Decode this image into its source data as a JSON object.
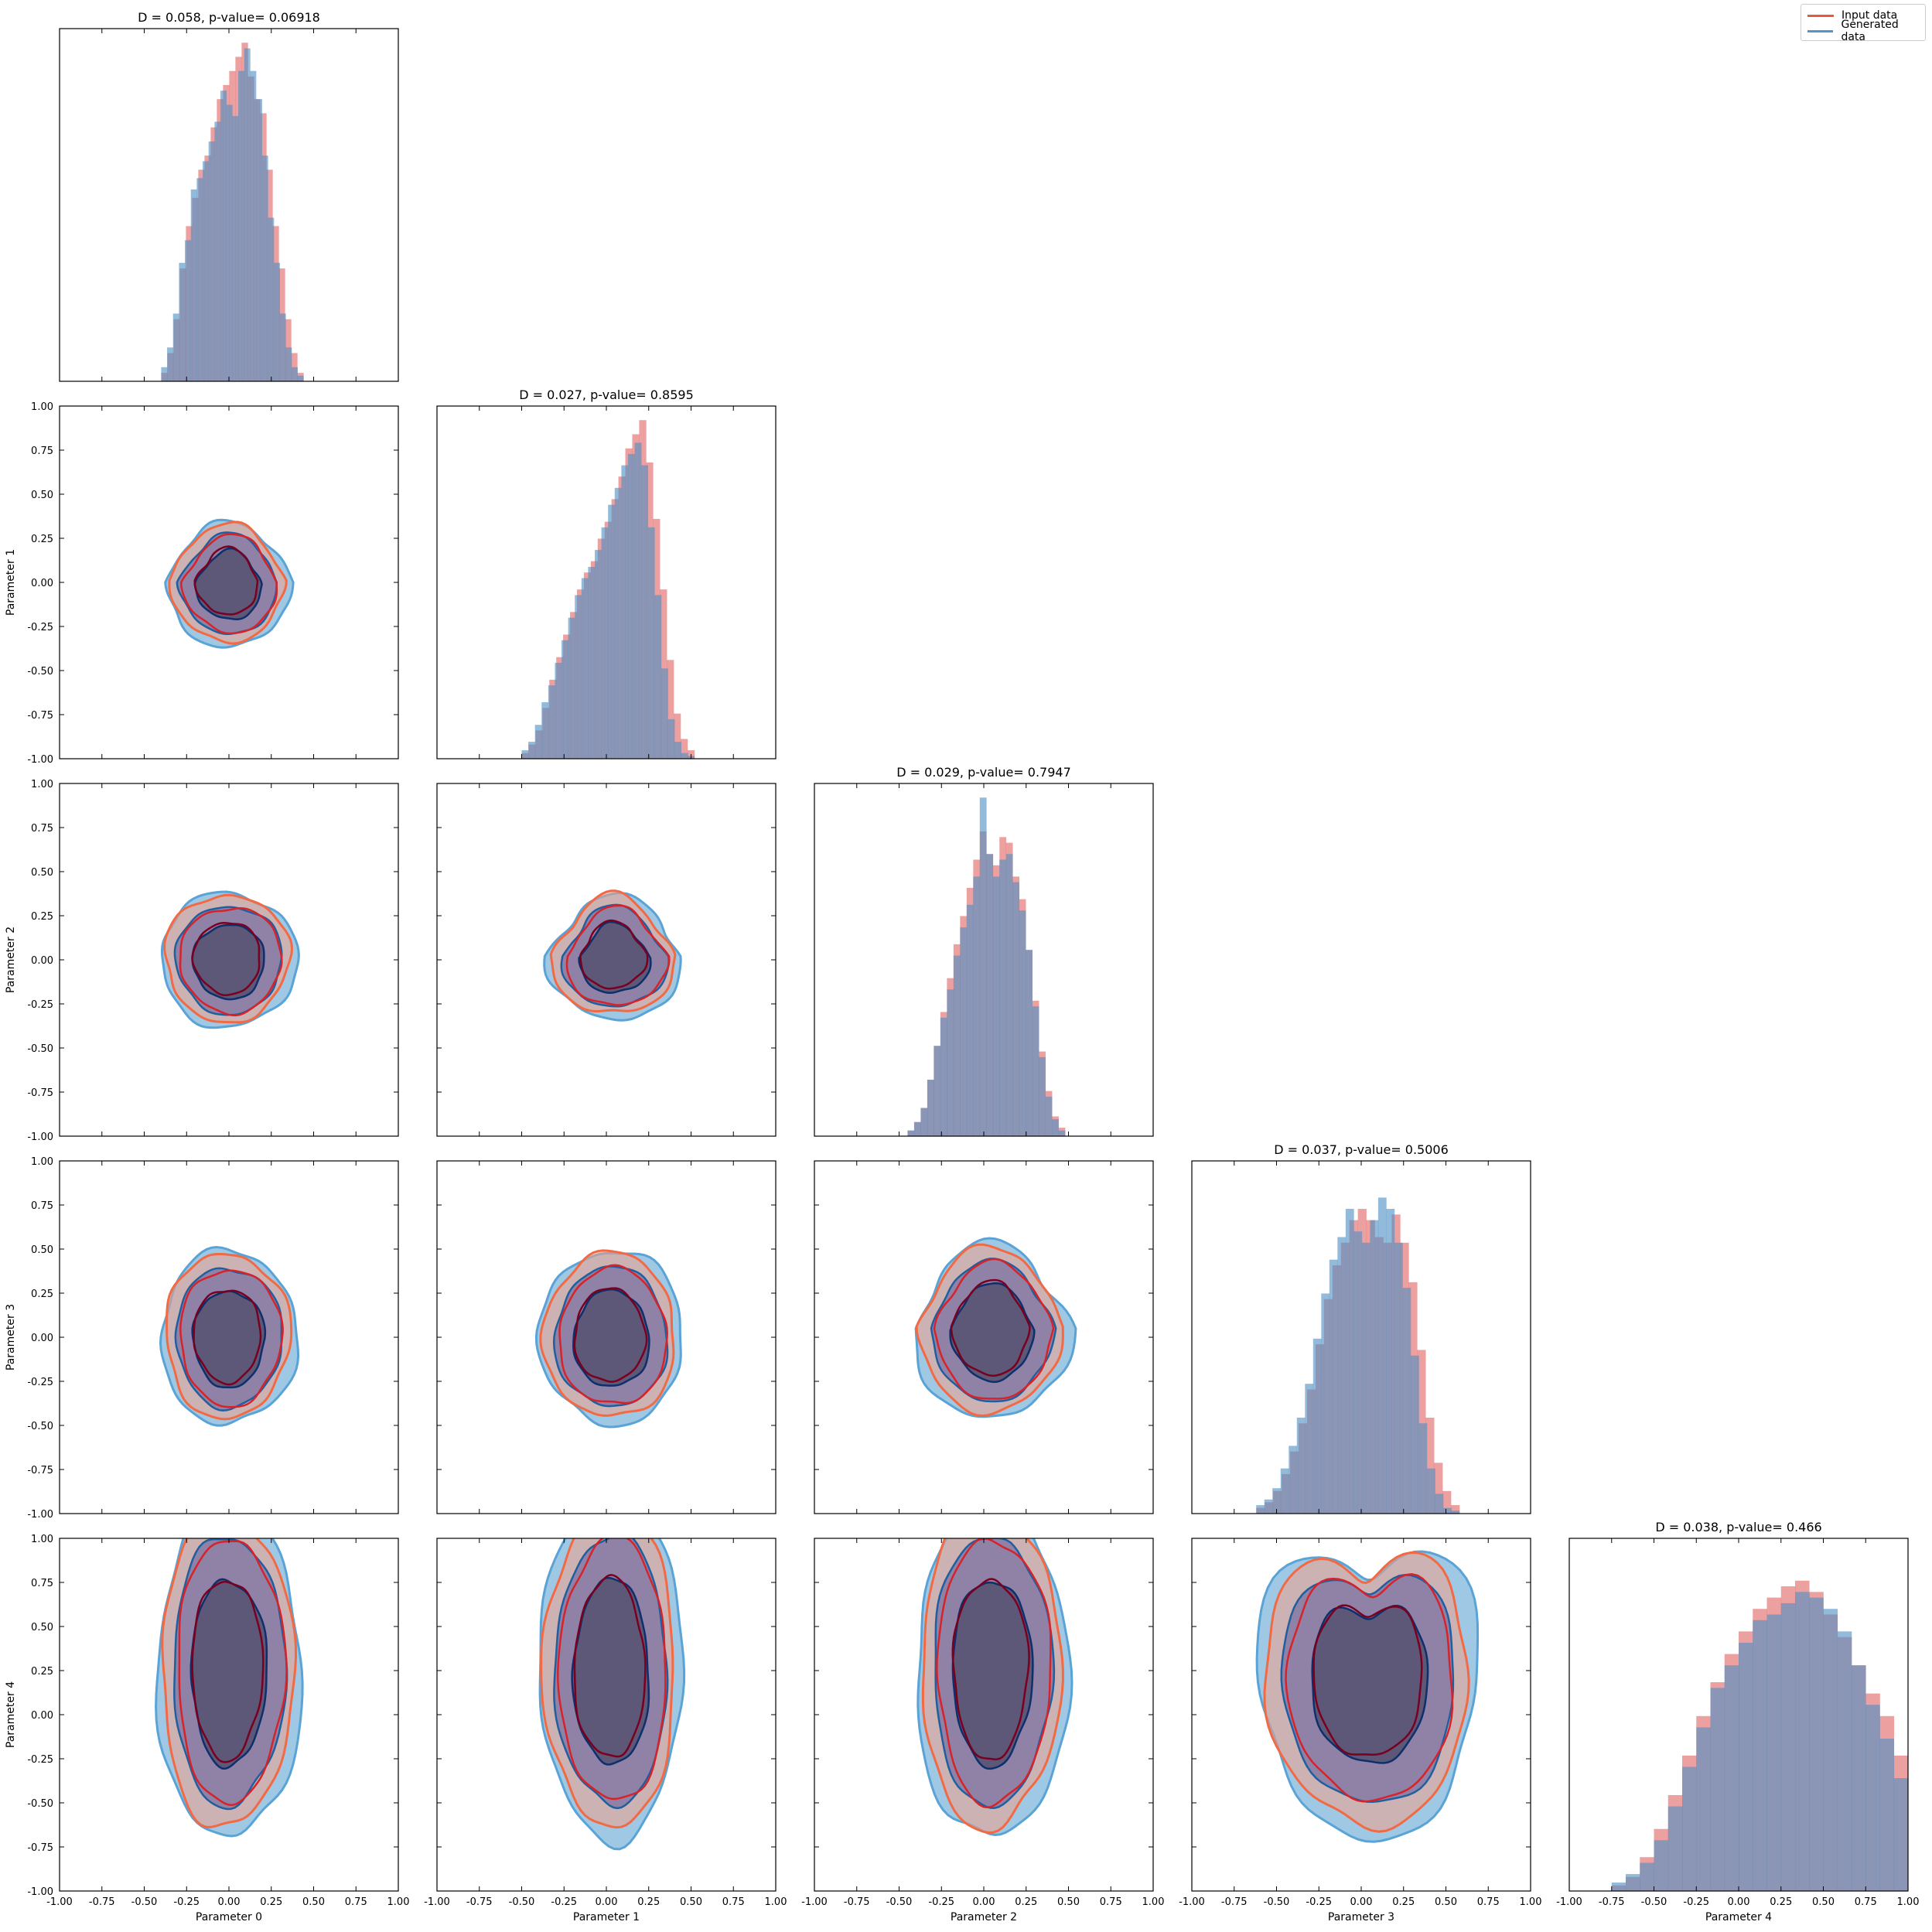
{
  "figure": {
    "legend": [
      {
        "label": "Input data",
        "color": "#e8583c"
      },
      {
        "label": "Generated data",
        "color": "#4f98cf"
      }
    ]
  },
  "colors": {
    "input_hist": "#e06666",
    "generated_hist": "#4f8fc4",
    "input_line_inner": "#7a0020",
    "input_line_mid": "#d6232a",
    "input_line_outer": "#f26a43",
    "gen_line_inner": "#0d2f6b",
    "gen_line_mid": "#1f5fa0",
    "gen_line_outer": "#5aa3d6",
    "fill_outer_input": "#f3a08a",
    "fill_outer_gen": "#7fb6dc",
    "fill_mid": "#8a7ba4",
    "fill_inner": "#5b5475"
  },
  "chart_data": {
    "type": "corner",
    "parameters": [
      "Parameter 0",
      "Parameter 1",
      "Parameter 2",
      "Parameter 3",
      "Parameter 4"
    ],
    "axis_range": [
      -1.0,
      1.0
    ],
    "tick_labels": [
      "-1.00",
      "-0.75",
      "-0.50",
      "-0.25",
      "0.00",
      "0.25",
      "0.50",
      "0.75",
      "1.00"
    ],
    "titles": [
      "D = 0.058, p-value= 0.06918",
      "D = 0.027, p-value= 0.8595",
      "D = 0.029, p-value= 0.7947",
      "D = 0.037, p-value= 0.5006",
      "D = 0.038, p-value= 0.466"
    ],
    "series": [
      {
        "name": "Input data"
      },
      {
        "name": "Generated data"
      }
    ],
    "histograms": [
      {
        "x": [
          -0.4,
          0.44
        ],
        "input": [
          3,
          10,
          22,
          40,
          55,
          65,
          75,
          80,
          90,
          100,
          105,
          110,
          115,
          120,
          108,
          100,
          95,
          75,
          55,
          40,
          22,
          10,
          3
        ],
        "generated": [
          5,
          12,
          24,
          42,
          50,
          68,
          72,
          78,
          85,
          92,
          103,
          98,
          94,
          110,
          118,
          110,
          100,
          80,
          58,
          42,
          24,
          12,
          5,
          2
        ]
      },
      {
        "x": [
          -0.5,
          0.52
        ],
        "input": [
          2,
          5,
          10,
          18,
          28,
          36,
          44,
          52,
          60,
          66,
          70,
          78,
          84,
          92,
          100,
          110,
          115,
          120,
          105,
          85,
          60,
          35,
          16,
          7,
          3
        ],
        "generated": [
          3,
          6,
          12,
          20,
          26,
          34,
          42,
          50,
          58,
          64,
          68,
          74,
          82,
          90,
          96,
          104,
          108,
          112,
          104,
          82,
          58,
          32,
          14,
          6,
          2,
          1
        ]
      },
      {
        "x": [
          -0.45,
          0.48
        ],
        "input": [
          2,
          5,
          10,
          20,
          32,
          44,
          56,
          68,
          78,
          88,
          98,
          108,
          100,
          96,
          106,
          104,
          92,
          84,
          66,
          48,
          30,
          16,
          7,
          3
        ],
        "generated": [
          2,
          5,
          10,
          20,
          32,
          42,
          52,
          64,
          74,
          82,
          92,
          120,
          100,
          92,
          98,
          100,
          90,
          80,
          66,
          46,
          28,
          14,
          6,
          2
        ]
      },
      {
        "x": [
          -0.62,
          0.58
        ],
        "input": [
          2,
          4,
          8,
          14,
          22,
          32,
          44,
          60,
          76,
          88,
          96,
          104,
          108,
          104,
          98,
          96,
          106,
          96,
          82,
          58,
          34,
          18,
          8,
          3
        ],
        "generated": [
          3,
          5,
          9,
          16,
          24,
          34,
          46,
          62,
          78,
          90,
          98,
          108,
          100,
          96,
          104,
          112,
          108,
          96,
          80,
          56,
          32,
          16,
          7,
          2,
          1
        ]
      },
      {
        "x": [
          -0.75,
          1.0
        ],
        "input": [
          2,
          5,
          12,
          22,
          34,
          48,
          62,
          74,
          84,
          92,
          100,
          104,
          108,
          110,
          106,
          98,
          90,
          80,
          70,
          62,
          48
        ],
        "generated": [
          3,
          6,
          10,
          18,
          30,
          44,
          58,
          72,
          80,
          88,
          96,
          98,
          102,
          106,
          104,
          100,
          92,
          80,
          66,
          54,
          40
        ]
      }
    ],
    "contour_pairs": [
      {
        "x": "Parameter 0",
        "y": "Parameter 1"
      },
      {
        "x": "Parameter 0",
        "y": "Parameter 2"
      },
      {
        "x": "Parameter 1",
        "y": "Parameter 2"
      },
      {
        "x": "Parameter 0",
        "y": "Parameter 3"
      },
      {
        "x": "Parameter 1",
        "y": "Parameter 3"
      },
      {
        "x": "Parameter 2",
        "y": "Parameter 3"
      },
      {
        "x": "Parameter 0",
        "y": "Parameter 4"
      },
      {
        "x": "Parameter 1",
        "y": "Parameter 4"
      },
      {
        "x": "Parameter 2",
        "y": "Parameter 4"
      },
      {
        "x": "Parameter 3",
        "y": "Parameter 4"
      }
    ]
  }
}
